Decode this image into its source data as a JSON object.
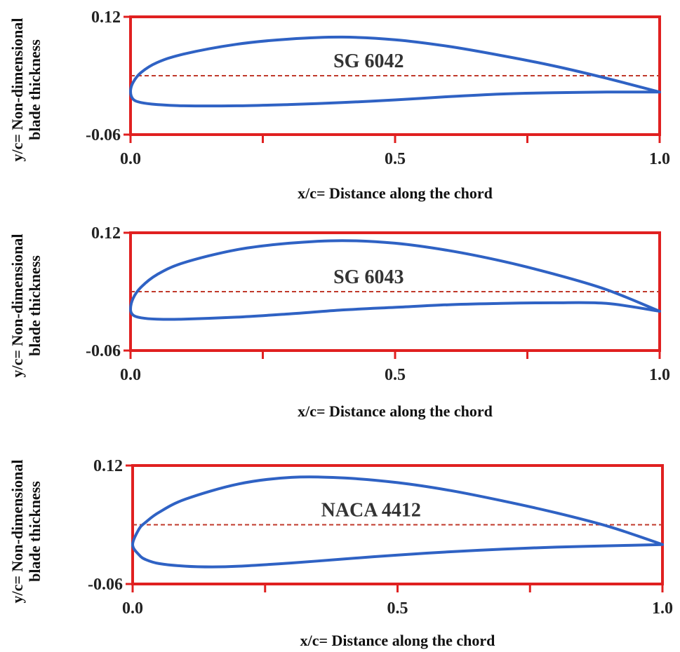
{
  "colors": {
    "frame": "#e02020",
    "profile": "#2f62c4",
    "camber": "#c0392b",
    "text": "#222222"
  },
  "chart_data": [
    {
      "type": "line",
      "title": "",
      "xlabel": "x/c= Distance along the chord",
      "ylabel_lines": [
        "y/c= Non-dimensional",
        "blade thickness"
      ],
      "xlim": [
        0,
        1
      ],
      "ylim": [
        -0.06,
        0.12
      ],
      "x_ticks": [
        0.0,
        0.5,
        1.0
      ],
      "x_tick_labels": [
        "0.0",
        "0.5",
        "1.0"
      ],
      "y_tick_labels": [
        "0.12",
        "-0.06"
      ],
      "grid": false,
      "annotation": "SG 6042",
      "camber_line_y": 0.03,
      "upper_surface": [
        [
          0,
          0.006
        ],
        [
          0.005,
          0.02
        ],
        [
          0.02,
          0.035
        ],
        [
          0.05,
          0.05
        ],
        [
          0.1,
          0.063
        ],
        [
          0.2,
          0.078
        ],
        [
          0.3,
          0.086
        ],
        [
          0.4,
          0.089
        ],
        [
          0.5,
          0.085
        ],
        [
          0.6,
          0.075
        ],
        [
          0.7,
          0.061
        ],
        [
          0.8,
          0.045
        ],
        [
          0.9,
          0.026
        ],
        [
          1.0,
          0.005
        ]
      ],
      "lower_surface": [
        [
          0,
          0.006
        ],
        [
          0.005,
          -0.006
        ],
        [
          0.02,
          -0.011
        ],
        [
          0.05,
          -0.014
        ],
        [
          0.1,
          -0.016
        ],
        [
          0.2,
          -0.016
        ],
        [
          0.3,
          -0.014
        ],
        [
          0.4,
          -0.011
        ],
        [
          0.5,
          -0.007
        ],
        [
          0.6,
          -0.002
        ],
        [
          0.7,
          0.002
        ],
        [
          0.8,
          0.004
        ],
        [
          0.9,
          0.005
        ],
        [
          1.0,
          0.005
        ]
      ]
    },
    {
      "type": "line",
      "title": "",
      "xlabel": "x/c= Distance along the chord",
      "ylabel_lines": [
        "y/c= Non-dimensional",
        "blade thickness"
      ],
      "xlim": [
        0,
        1
      ],
      "ylim": [
        -0.06,
        0.12
      ],
      "x_ticks": [
        0.0,
        0.5,
        1.0
      ],
      "x_tick_labels": [
        "0.0",
        "0.5",
        "1.0"
      ],
      "y_tick_labels": [
        "0.12",
        "-0.06"
      ],
      "grid": false,
      "annotation": "SG 6043",
      "camber_line_y": 0.03,
      "upper_surface": [
        [
          0,
          0.003
        ],
        [
          0.005,
          0.02
        ],
        [
          0.02,
          0.037
        ],
        [
          0.05,
          0.056
        ],
        [
          0.1,
          0.074
        ],
        [
          0.2,
          0.094
        ],
        [
          0.3,
          0.104
        ],
        [
          0.4,
          0.108
        ],
        [
          0.5,
          0.104
        ],
        [
          0.6,
          0.093
        ],
        [
          0.7,
          0.077
        ],
        [
          0.8,
          0.057
        ],
        [
          0.9,
          0.033
        ],
        [
          1.0,
          0.0
        ]
      ],
      "lower_surface": [
        [
          0,
          0.003
        ],
        [
          0.005,
          -0.006
        ],
        [
          0.02,
          -0.01
        ],
        [
          0.05,
          -0.012
        ],
        [
          0.1,
          -0.012
        ],
        [
          0.2,
          -0.009
        ],
        [
          0.3,
          -0.004
        ],
        [
          0.4,
          0.002
        ],
        [
          0.5,
          0.006
        ],
        [
          0.6,
          0.01
        ],
        [
          0.7,
          0.012
        ],
        [
          0.8,
          0.013
        ],
        [
          0.9,
          0.012
        ],
        [
          1.0,
          0.0
        ]
      ]
    },
    {
      "type": "line",
      "title": "",
      "xlabel": "x/c= Distance along the chord",
      "ylabel_lines": [
        "y/c= Non-dimensional",
        "blade thickness"
      ],
      "xlim": [
        0,
        1
      ],
      "ylim": [
        -0.06,
        0.12
      ],
      "x_ticks": [
        0.0,
        0.5,
        1.0
      ],
      "x_tick_labels": [
        "0.0",
        "0.5",
        "1.0"
      ],
      "y_tick_labels": [
        "0.12",
        "-0.06"
      ],
      "grid": false,
      "annotation": "NACA 4412",
      "camber_line_y": 0.03,
      "upper_surface": [
        [
          0,
          0.0
        ],
        [
          0.0125,
          0.024
        ],
        [
          0.025,
          0.034
        ],
        [
          0.05,
          0.049
        ],
        [
          0.1,
          0.069
        ],
        [
          0.2,
          0.092
        ],
        [
          0.3,
          0.102
        ],
        [
          0.4,
          0.101
        ],
        [
          0.5,
          0.094
        ],
        [
          0.6,
          0.082
        ],
        [
          0.7,
          0.066
        ],
        [
          0.8,
          0.048
        ],
        [
          0.9,
          0.027
        ],
        [
          1.0,
          0.0
        ]
      ],
      "lower_surface": [
        [
          0,
          0.0
        ],
        [
          0.0125,
          -0.016
        ],
        [
          0.025,
          -0.023
        ],
        [
          0.05,
          -0.029
        ],
        [
          0.1,
          -0.033
        ],
        [
          0.15,
          -0.034
        ],
        [
          0.2,
          -0.033
        ],
        [
          0.3,
          -0.028
        ],
        [
          0.4,
          -0.022
        ],
        [
          0.5,
          -0.016
        ],
        [
          0.6,
          -0.011
        ],
        [
          0.7,
          -0.007
        ],
        [
          0.8,
          -0.004
        ],
        [
          0.9,
          -0.002
        ],
        [
          1.0,
          0.0
        ]
      ]
    }
  ]
}
